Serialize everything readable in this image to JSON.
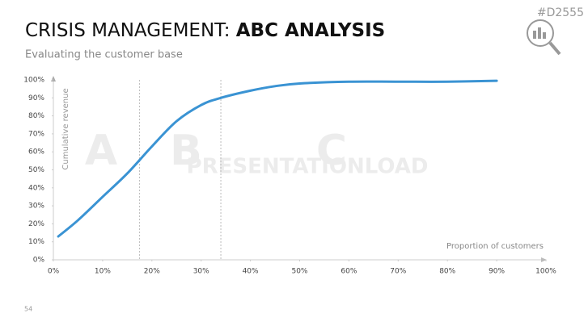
{
  "page_id": "#D2555",
  "page_number": "54",
  "chart_data": {
    "type": "line",
    "title": "CRISIS MANAGEMENT: ",
    "title_bold": "ABC ANALYSIS",
    "subtitle": "Evaluating the customer base",
    "y_label": "Cumulative revenue",
    "x_label": "Proportion of customers",
    "zones": [
      "A",
      "B",
      "C"
    ],
    "watermark": "PRESENTATIONLOAD",
    "dividers": [
      17.5,
      34
    ],
    "x": [
      1,
      5,
      10,
      15,
      20,
      25,
      30,
      34,
      40,
      45,
      50,
      60,
      70,
      80,
      90
    ],
    "series": [
      {
        "name": "Cumulative revenue",
        "color": "#3a93d3",
        "values": [
          13,
          22,
          35,
          48,
          63,
          77,
          86,
          90,
          94,
          96.5,
          98,
          99,
          99,
          99,
          99.5
        ]
      }
    ],
    "xlim": [
      0,
      100
    ],
    "ylim": [
      0,
      100
    ],
    "xticks": [
      {
        "value": 0,
        "label": "0%"
      },
      {
        "value": 10,
        "label": "10%"
      },
      {
        "value": 20,
        "label": "20%"
      },
      {
        "value": 30,
        "label": "30%"
      },
      {
        "value": 40,
        "label": "40%"
      },
      {
        "value": 50,
        "label": "50%"
      },
      {
        "value": 60,
        "label": "60%"
      },
      {
        "value": 70,
        "label": "70%"
      },
      {
        "value": 80,
        "label": "80%"
      },
      {
        "value": 90,
        "label": "90%"
      },
      {
        "value": 100,
        "label": "100%"
      }
    ],
    "yticks": [
      {
        "value": 0,
        "label": "0%"
      },
      {
        "value": 10,
        "label": "10%"
      },
      {
        "value": 20,
        "label": "20%"
      },
      {
        "value": 30,
        "label": "30%"
      },
      {
        "value": 40,
        "label": "40%"
      },
      {
        "value": 50,
        "label": "50%"
      },
      {
        "value": 60,
        "label": "60%"
      },
      {
        "value": 70,
        "label": "70%"
      },
      {
        "value": 80,
        "label": "80%"
      },
      {
        "value": 90,
        "label": "90%"
      },
      {
        "value": 100,
        "label": "100%"
      }
    ]
  }
}
